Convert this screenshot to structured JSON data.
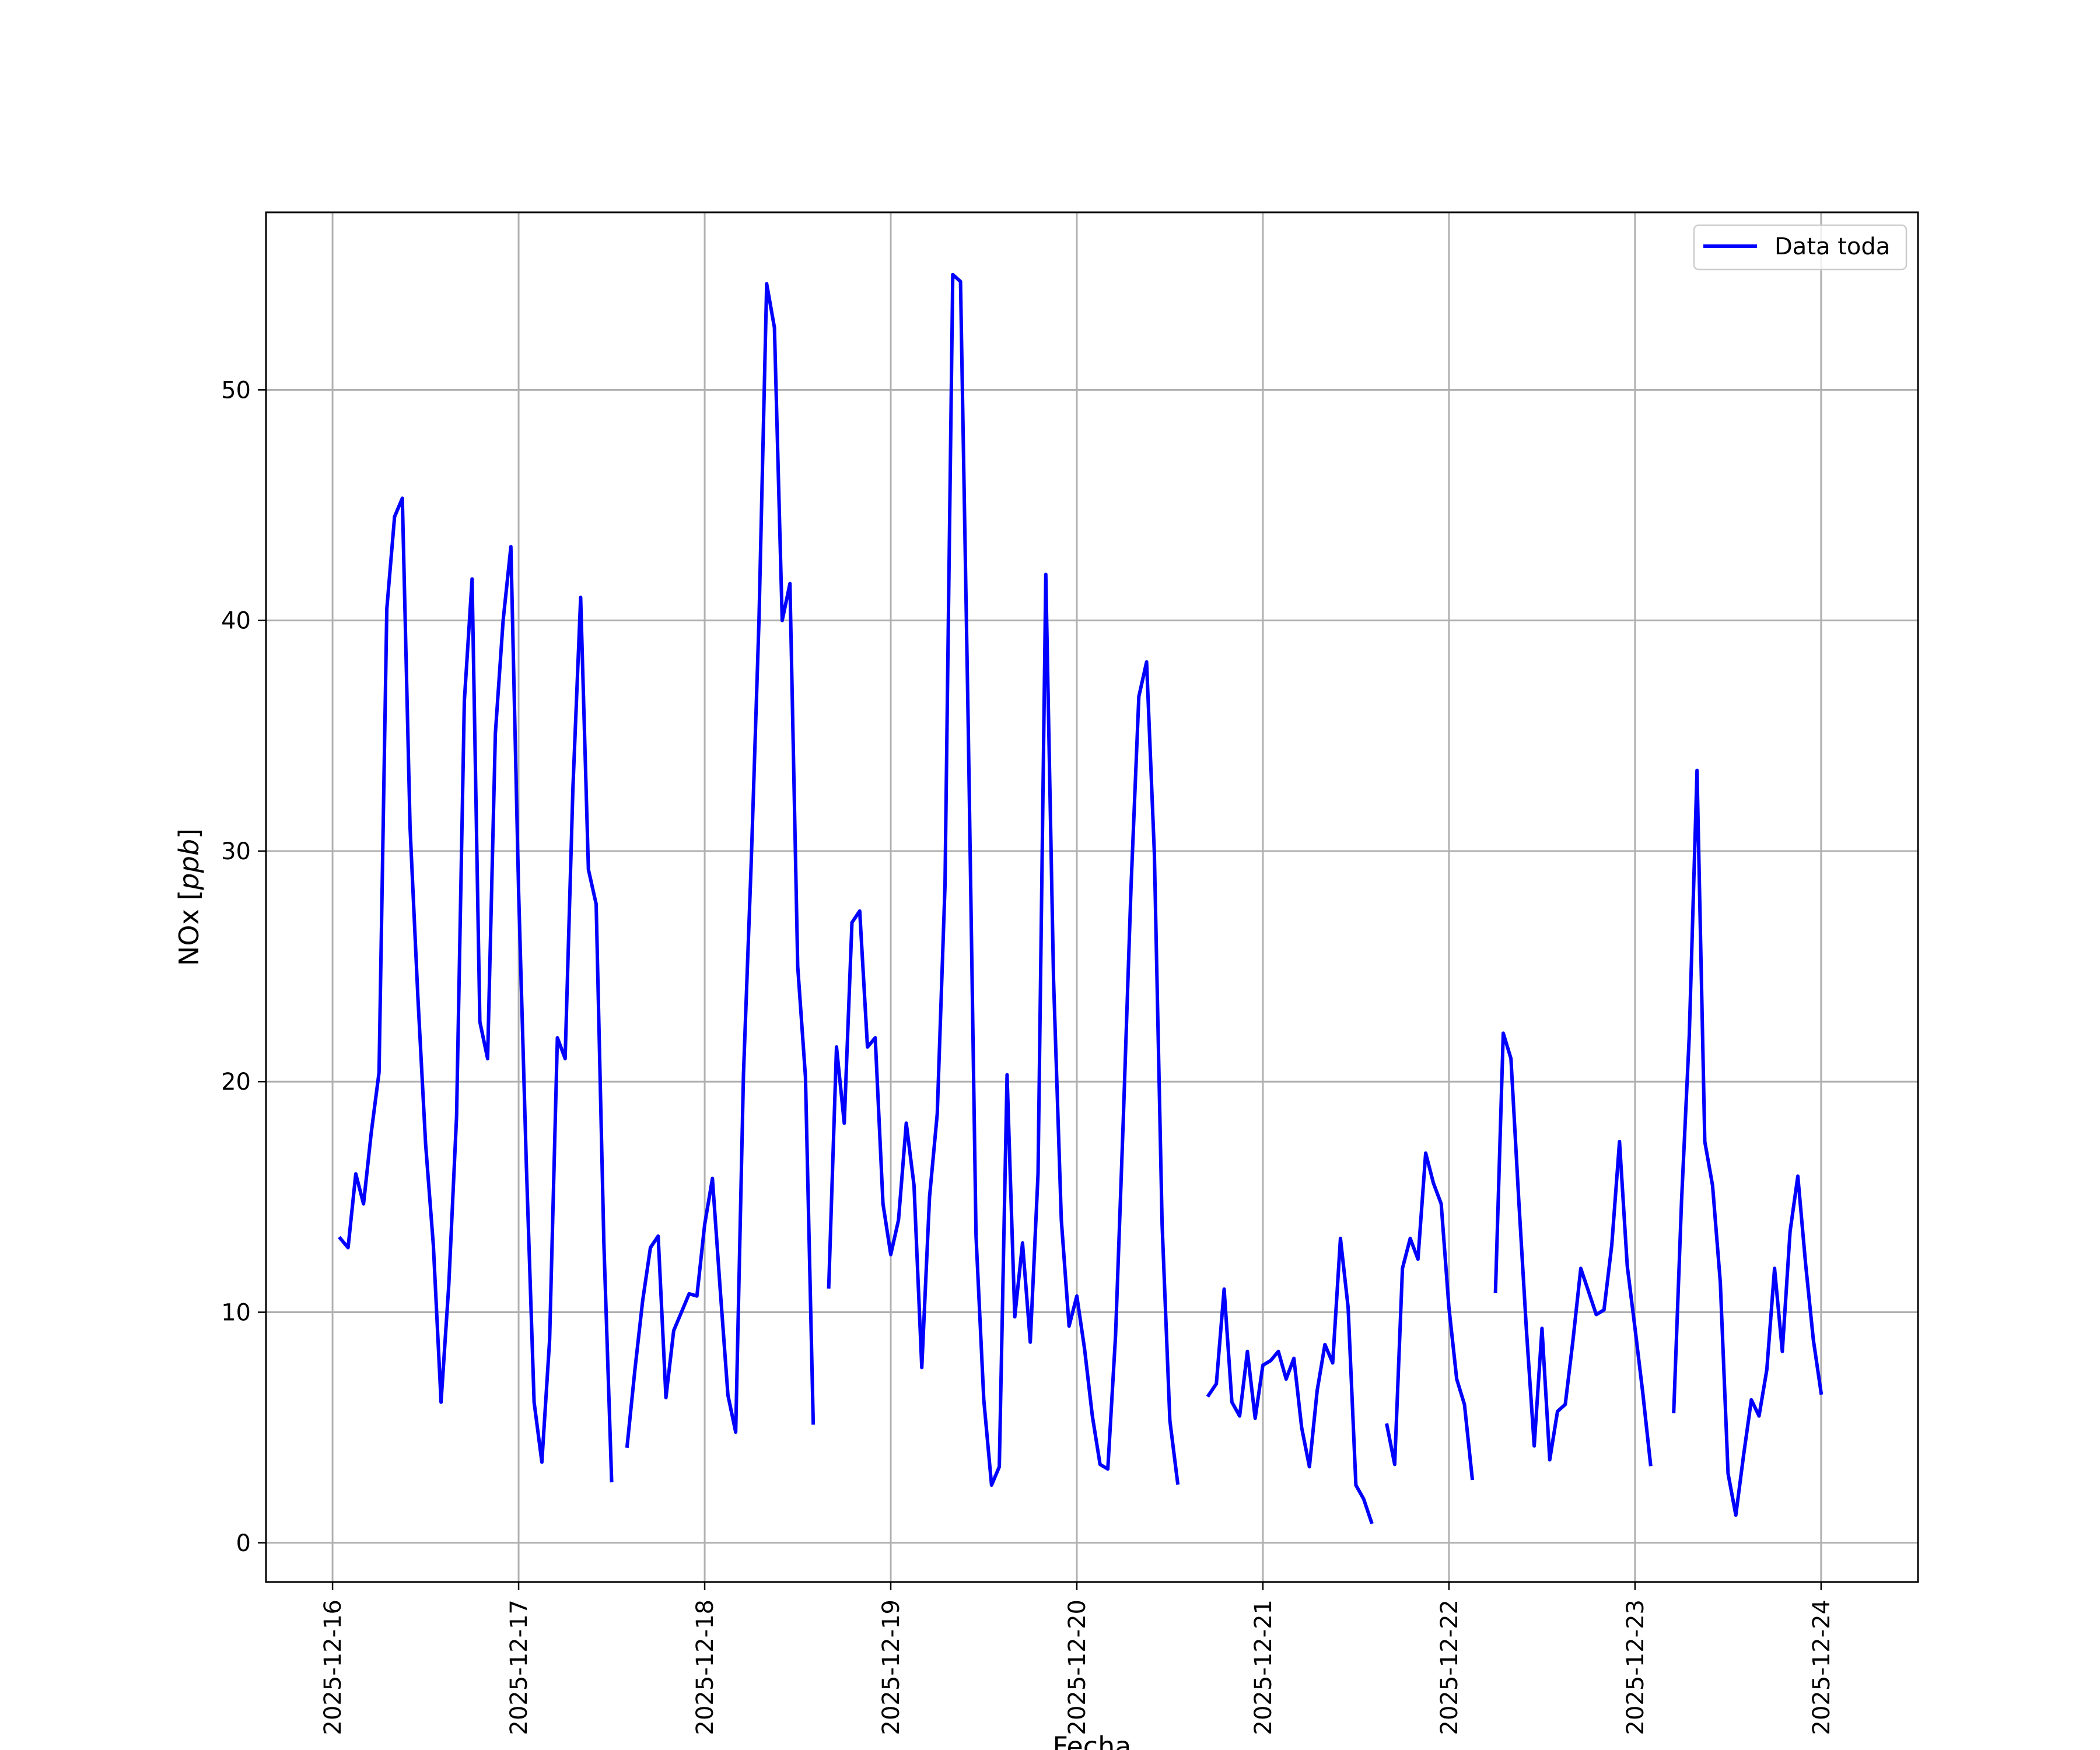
{
  "chart_data": {
    "type": "line",
    "title": "",
    "xlabel": "Fecha",
    "ylabel": "NOx [ppb]",
    "ylabel_parts": {
      "prefix": "NOx [",
      "unit": "ppb",
      "suffix": "]"
    },
    "x_tick_labels": [
      "2025-12-16",
      "2025-12-17",
      "2025-12-18",
      "2025-12-19",
      "2025-12-20",
      "2025-12-21",
      "2025-12-22",
      "2025-12-23",
      "2025-12-24"
    ],
    "y_tick_labels": [
      "0",
      "10",
      "20",
      "30",
      "40",
      "50"
    ],
    "y_ticks": [
      0,
      10,
      20,
      30,
      40,
      50
    ],
    "xlim": [
      "2025-12-15 15:25",
      "2025-12-24 12:30"
    ],
    "ylim": [
      -1.7,
      57.7
    ],
    "grid": true,
    "legend_position": "upper right",
    "series": [
      {
        "name": "Data toda",
        "color": "#0000ff",
        "segments": [
          [
            [
              "2025-12-16 01:00",
              13.2
            ],
            [
              "2025-12-16 02:00",
              12.8
            ],
            [
              "2025-12-16 03:00",
              16.0
            ],
            [
              "2025-12-16 04:00",
              14.7
            ],
            [
              "2025-12-16 05:00",
              17.8
            ],
            [
              "2025-12-16 06:00",
              20.4
            ],
            [
              "2025-12-16 07:00",
              40.5
            ],
            [
              "2025-12-16 08:00",
              44.5
            ],
            [
              "2025-12-16 09:00",
              45.3
            ],
            [
              "2025-12-16 10:00",
              31.0
            ],
            [
              "2025-12-16 11:00",
              23.7
            ],
            [
              "2025-12-16 12:00",
              17.3
            ],
            [
              "2025-12-16 13:00",
              12.9
            ],
            [
              "2025-12-16 14:00",
              6.1
            ],
            [
              "2025-12-16 15:00",
              11.2
            ],
            [
              "2025-12-16 16:00",
              18.5
            ],
            [
              "2025-12-16 17:00",
              36.5
            ],
            [
              "2025-12-16 18:00",
              41.8
            ],
            [
              "2025-12-16 19:00",
              22.6
            ],
            [
              "2025-12-16 20:00",
              21.0
            ],
            [
              "2025-12-16 21:00",
              35.1
            ],
            [
              "2025-12-16 22:00",
              40.0
            ],
            [
              "2025-12-16 23:00",
              43.2
            ],
            [
              "2025-12-17 00:00",
              28.2
            ],
            [
              "2025-12-17 01:00",
              16.4
            ],
            [
              "2025-12-17 02:00",
              6.1
            ],
            [
              "2025-12-17 03:00",
              3.5
            ],
            [
              "2025-12-17 04:00",
              8.8
            ],
            [
              "2025-12-17 05:00",
              21.9
            ],
            [
              "2025-12-17 06:00",
              21.0
            ],
            [
              "2025-12-17 07:00",
              32.7
            ],
            [
              "2025-12-17 08:00",
              41.0
            ],
            [
              "2025-12-17 09:00",
              29.2
            ],
            [
              "2025-12-17 10:00",
              27.7
            ],
            [
              "2025-12-17 11:00",
              13.0
            ],
            [
              "2025-12-17 12:00",
              2.7
            ]
          ],
          [
            [
              "2025-12-17 14:00",
              4.2
            ],
            [
              "2025-12-17 15:00",
              7.5
            ],
            [
              "2025-12-17 16:00",
              10.5
            ],
            [
              "2025-12-17 17:00",
              12.8
            ],
            [
              "2025-12-17 18:00",
              13.3
            ],
            [
              "2025-12-17 19:00",
              6.3
            ],
            [
              "2025-12-17 20:00",
              9.2
            ],
            [
              "2025-12-17 21:00",
              10.0
            ],
            [
              "2025-12-17 22:00",
              10.8
            ],
            [
              "2025-12-17 23:00",
              10.7
            ],
            [
              "2025-12-18 00:00",
              13.8
            ],
            [
              "2025-12-18 01:00",
              15.8
            ],
            [
              "2025-12-18 02:00",
              11.0
            ],
            [
              "2025-12-18 03:00",
              6.4
            ],
            [
              "2025-12-18 04:00",
              4.8
            ],
            [
              "2025-12-18 05:00",
              20.3
            ],
            [
              "2025-12-18 06:00",
              29.5
            ],
            [
              "2025-12-18 07:00",
              40.0
            ],
            [
              "2025-12-18 08:00",
              54.6
            ],
            [
              "2025-12-18 09:00",
              52.7
            ],
            [
              "2025-12-18 10:00",
              40.0
            ],
            [
              "2025-12-18 11:00",
              41.6
            ],
            [
              "2025-12-18 12:00",
              25.0
            ],
            [
              "2025-12-18 13:00",
              20.2
            ],
            [
              "2025-12-18 14:00",
              5.2
            ]
          ],
          [
            [
              "2025-12-18 16:00",
              11.1
            ],
            [
              "2025-12-18 17:00",
              21.5
            ],
            [
              "2025-12-18 18:00",
              18.2
            ],
            [
              "2025-12-18 19:00",
              26.9
            ],
            [
              "2025-12-18 20:00",
              27.4
            ],
            [
              "2025-12-18 21:00",
              21.5
            ],
            [
              "2025-12-18 22:00",
              21.9
            ],
            [
              "2025-12-18 23:00",
              14.7
            ],
            [
              "2025-12-19 00:00",
              12.5
            ],
            [
              "2025-12-19 01:00",
              14.0
            ],
            [
              "2025-12-19 02:00",
              18.2
            ],
            [
              "2025-12-19 03:00",
              15.5
            ],
            [
              "2025-12-19 04:00",
              7.6
            ],
            [
              "2025-12-19 05:00",
              15.0
            ],
            [
              "2025-12-19 06:00",
              18.6
            ],
            [
              "2025-12-19 07:00",
              28.5
            ],
            [
              "2025-12-19 08:00",
              55.0
            ],
            [
              "2025-12-19 09:00",
              54.7
            ],
            [
              "2025-12-19 10:00",
              35.3
            ],
            [
              "2025-12-19 11:00",
              13.3
            ],
            [
              "2025-12-19 12:00",
              6.2
            ],
            [
              "2025-12-19 13:00",
              2.5
            ],
            [
              "2025-12-19 14:00",
              3.3
            ],
            [
              "2025-12-19 15:00",
              20.3
            ],
            [
              "2025-12-19 16:00",
              9.8
            ],
            [
              "2025-12-19 17:00",
              13.0
            ],
            [
              "2025-12-19 18:00",
              8.7
            ],
            [
              "2025-12-19 19:00",
              16.0
            ],
            [
              "2025-12-19 20:00",
              42.0
            ],
            [
              "2025-12-19 21:00",
              24.4
            ],
            [
              "2025-12-19 22:00",
              14.0
            ],
            [
              "2025-12-19 23:00",
              9.4
            ],
            [
              "2025-12-20 00:00",
              10.7
            ],
            [
              "2025-12-20 01:00",
              8.4
            ],
            [
              "2025-12-20 02:00",
              5.5
            ],
            [
              "2025-12-20 03:00",
              3.4
            ],
            [
              "2025-12-20 04:00",
              3.2
            ],
            [
              "2025-12-20 05:00",
              9.0
            ],
            [
              "2025-12-20 06:00",
              18.4
            ],
            [
              "2025-12-20 07:00",
              28.5
            ],
            [
              "2025-12-20 08:00",
              36.7
            ],
            [
              "2025-12-20 09:00",
              38.2
            ],
            [
              "2025-12-20 10:00",
              29.9
            ],
            [
              "2025-12-20 11:00",
              13.8
            ],
            [
              "2025-12-20 12:00",
              5.3
            ],
            [
              "2025-12-20 13:00",
              2.6
            ]
          ],
          [
            [
              "2025-12-20 17:00",
              6.4
            ],
            [
              "2025-12-20 18:00",
              6.9
            ],
            [
              "2025-12-20 19:00",
              11.0
            ],
            [
              "2025-12-20 20:00",
              6.1
            ],
            [
              "2025-12-20 21:00",
              5.5
            ],
            [
              "2025-12-20 22:00",
              8.3
            ],
            [
              "2025-12-20 23:00",
              5.4
            ],
            [
              "2025-12-21 00:00",
              7.7
            ],
            [
              "2025-12-21 01:00",
              7.9
            ],
            [
              "2025-12-21 02:00",
              8.3
            ],
            [
              "2025-12-21 03:00",
              7.1
            ],
            [
              "2025-12-21 04:00",
              8.0
            ],
            [
              "2025-12-21 05:00",
              5.0
            ],
            [
              "2025-12-21 06:00",
              3.3
            ],
            [
              "2025-12-21 07:00",
              6.6
            ],
            [
              "2025-12-21 08:00",
              8.6
            ],
            [
              "2025-12-21 09:00",
              7.8
            ],
            [
              "2025-12-21 10:00",
              13.2
            ],
            [
              "2025-12-21 11:00",
              10.2
            ],
            [
              "2025-12-21 12:00",
              2.5
            ],
            [
              "2025-12-21 13:00",
              1.9
            ],
            [
              "2025-12-21 14:00",
              0.9
            ]
          ],
          [
            [
              "2025-12-21 16:00",
              5.1
            ],
            [
              "2025-12-21 17:00",
              3.4
            ],
            [
              "2025-12-21 18:00",
              11.9
            ],
            [
              "2025-12-21 19:00",
              13.2
            ],
            [
              "2025-12-21 20:00",
              12.3
            ],
            [
              "2025-12-21 21:00",
              16.9
            ],
            [
              "2025-12-21 22:00",
              15.6
            ],
            [
              "2025-12-21 23:00",
              14.7
            ],
            [
              "2025-12-22 00:00",
              10.2
            ],
            [
              "2025-12-22 01:00",
              7.1
            ],
            [
              "2025-12-22 02:00",
              6.0
            ],
            [
              "2025-12-22 03:00",
              2.8
            ]
          ],
          [
            [
              "2025-12-22 06:00",
              10.9
            ],
            [
              "2025-12-22 07:00",
              22.1
            ],
            [
              "2025-12-22 08:00",
              21.0
            ],
            [
              "2025-12-22 09:00",
              14.9
            ],
            [
              "2025-12-22 10:00",
              9.2
            ],
            [
              "2025-12-22 11:00",
              4.2
            ],
            [
              "2025-12-22 12:00",
              9.3
            ],
            [
              "2025-12-22 13:00",
              3.6
            ],
            [
              "2025-12-22 14:00",
              5.7
            ],
            [
              "2025-12-22 15:00",
              6.0
            ],
            [
              "2025-12-22 16:00",
              8.8
            ],
            [
              "2025-12-22 17:00",
              11.9
            ],
            [
              "2025-12-22 18:00",
              10.9
            ],
            [
              "2025-12-22 19:00",
              9.9
            ],
            [
              "2025-12-22 20:00",
              10.1
            ],
            [
              "2025-12-22 21:00",
              12.9
            ],
            [
              "2025-12-22 22:00",
              17.4
            ],
            [
              "2025-12-22 23:00",
              12.0
            ],
            [
              "2025-12-23 00:00",
              9.3
            ],
            [
              "2025-12-23 01:00",
              6.5
            ],
            [
              "2025-12-23 02:00",
              3.4
            ]
          ],
          [
            [
              "2025-12-23 05:00",
              5.7
            ],
            [
              "2025-12-23 06:00",
              14.8
            ],
            [
              "2025-12-23 07:00",
              22.0
            ],
            [
              "2025-12-23 08:00",
              33.5
            ],
            [
              "2025-12-23 09:00",
              17.4
            ],
            [
              "2025-12-23 10:00",
              15.5
            ],
            [
              "2025-12-23 11:00",
              11.3
            ],
            [
              "2025-12-23 12:00",
              3.0
            ],
            [
              "2025-12-23 13:00",
              1.2
            ],
            [
              "2025-12-23 14:00",
              3.8
            ],
            [
              "2025-12-23 15:00",
              6.2
            ],
            [
              "2025-12-23 16:00",
              5.5
            ],
            [
              "2025-12-23 17:00",
              7.5
            ],
            [
              "2025-12-23 18:00",
              11.9
            ],
            [
              "2025-12-23 19:00",
              8.3
            ],
            [
              "2025-12-23 20:00",
              13.5
            ],
            [
              "2025-12-23 21:00",
              15.9
            ],
            [
              "2025-12-23 22:00",
              12.1
            ],
            [
              "2025-12-23 23:00",
              8.8
            ],
            [
              "2025-12-24 00:00",
              6.5
            ]
          ]
        ]
      }
    ]
  }
}
